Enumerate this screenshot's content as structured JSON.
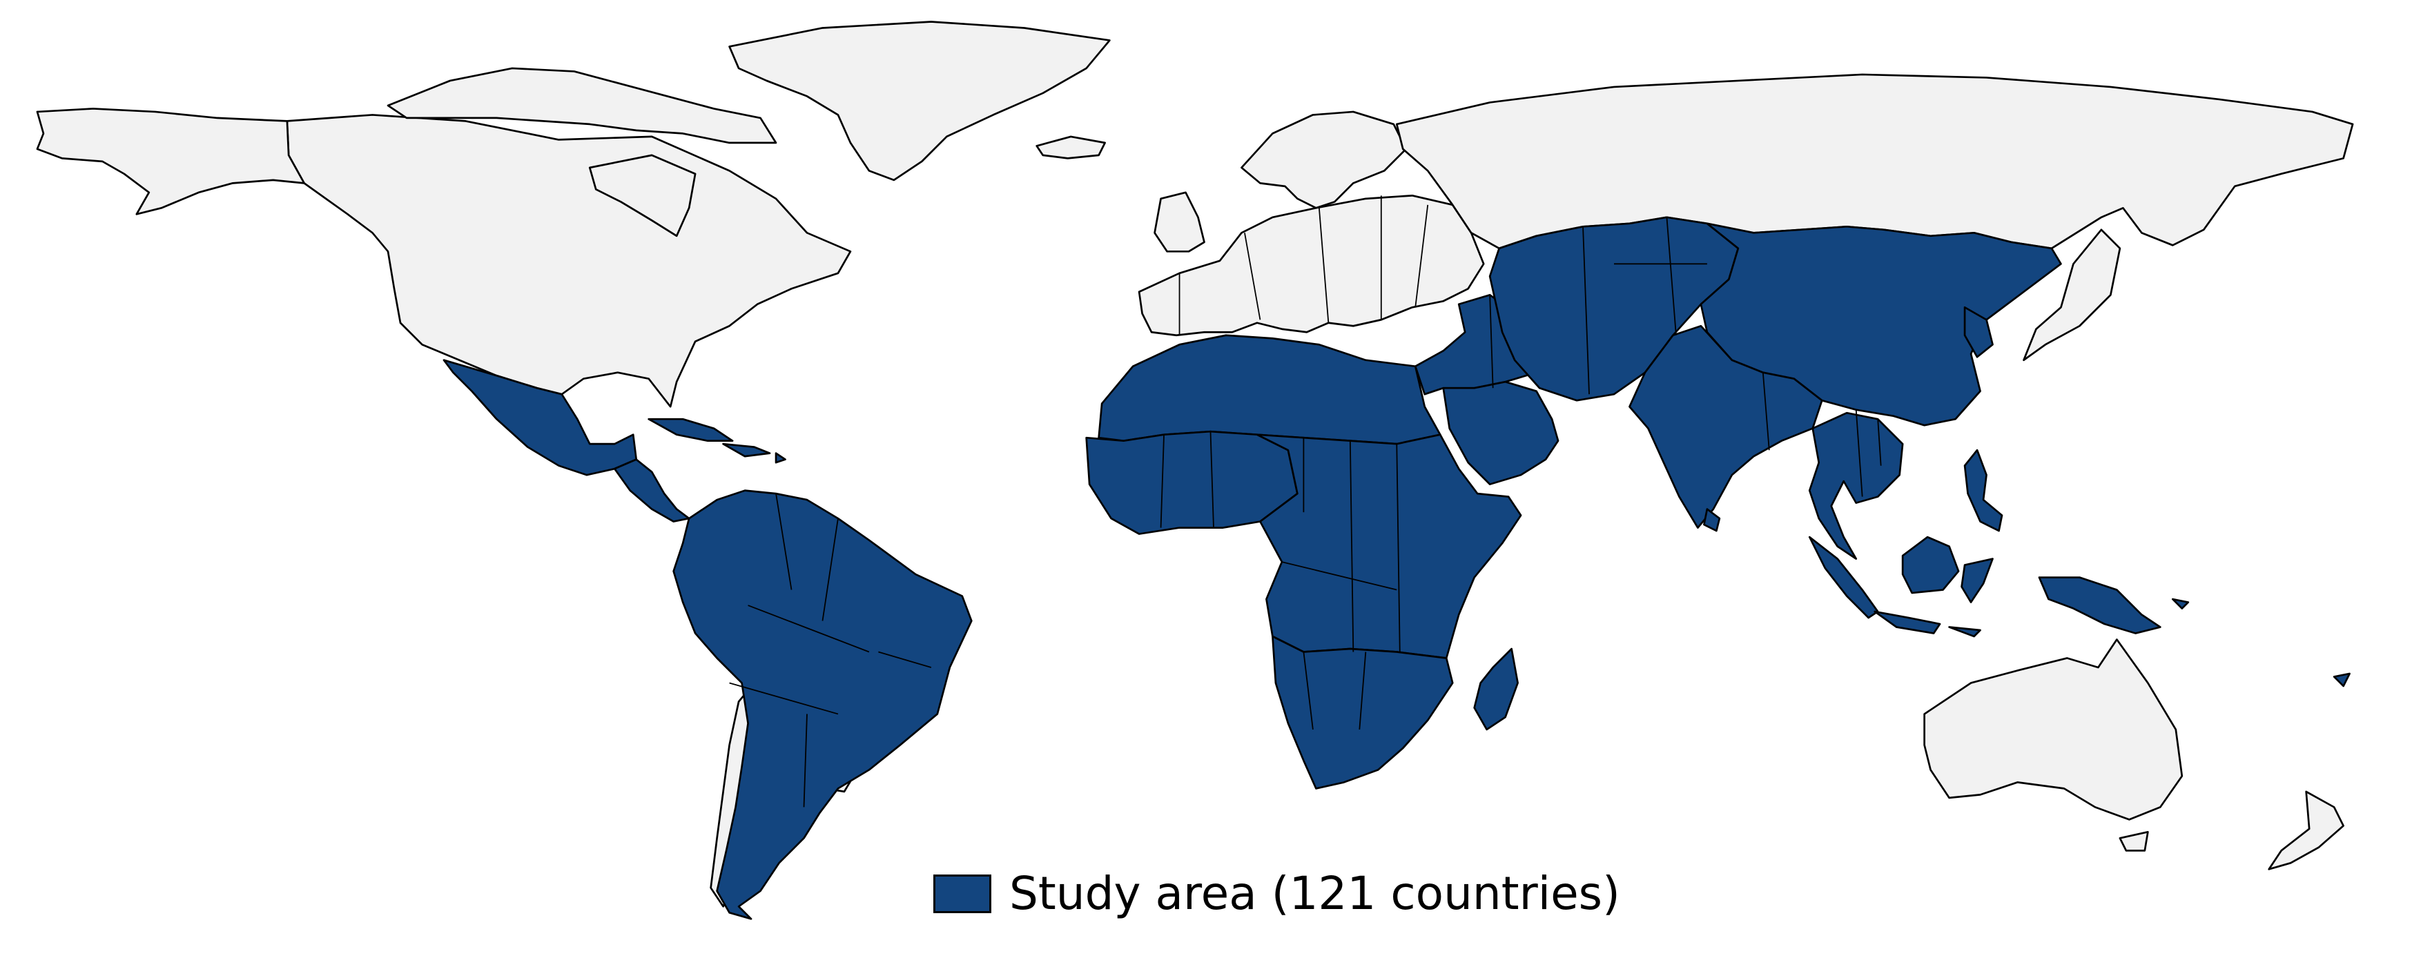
{
  "map": {
    "colors": {
      "study_area": "#13457f",
      "other": "#f2f2f2",
      "border": "#000000",
      "background": "#ffffff"
    },
    "study_regions": [
      "mexico",
      "central-america",
      "caribbean-islands",
      "south-america",
      "north-africa",
      "africa-west",
      "africa-central-east",
      "africa-south",
      "madagascar",
      "middle-east",
      "arabian-peninsula",
      "central-asia",
      "china",
      "korea",
      "south-asia",
      "sri-lanka",
      "southeast-asia",
      "philippines",
      "indonesia",
      "borneo",
      "sulawesi",
      "new-guinea",
      "pacific-islands"
    ],
    "other_regions": [
      "north-america",
      "alaska",
      "canadian-arctic",
      "greenland",
      "iceland",
      "europe",
      "scandinavia",
      "british-isles",
      "russia",
      "japan",
      "australia",
      "new-zealand",
      "uruguay",
      "chile"
    ]
  },
  "legend": {
    "label": "Study area (121 countries)",
    "swatch_color": "#13457f"
  }
}
